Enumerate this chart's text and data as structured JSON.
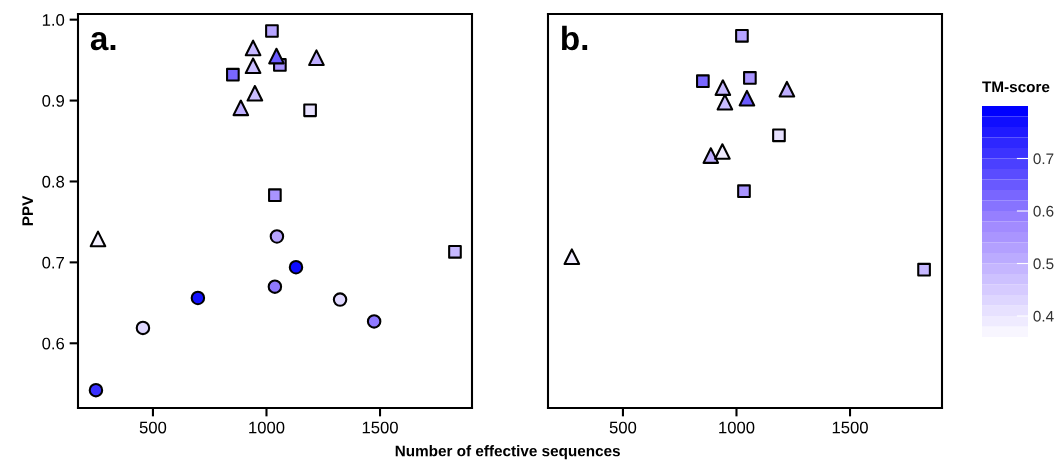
{
  "chart_data": [
    {
      "type": "scatter",
      "title": "a.",
      "xlabel": "Number of effective sequences",
      "ylabel": "PPV",
      "xlim": [
        170,
        1905
      ],
      "xticks": [
        500,
        1000,
        1500
      ],
      "ylim": [
        0.52,
        1.007
      ],
      "yticks": [
        0.6,
        0.7,
        0.8,
        0.9,
        {
          "value": 1.0,
          "label": "1.0"
        }
      ],
      "series": [
        {
          "marker": "circle",
          "x": [
            249,
            456,
            698,
            1037,
            1046,
            1130,
            1324,
            1474
          ],
          "values": [
            0.542,
            0.619,
            0.656,
            0.67,
            0.732,
            0.694,
            0.654,
            0.627
          ],
          "colors": [
            "#3930ff",
            "#dfd7ff",
            "#1512ff",
            "#8f79ff",
            "#b6a4ff",
            "#0e0cff",
            "#dfd7ff",
            "#8f79ff"
          ]
        },
        {
          "marker": "square",
          "x": [
            1024,
            852,
            1059,
            1037,
            1192,
            1830
          ],
          "values": [
            0.986,
            0.932,
            0.944,
            0.783,
            0.888,
            0.713
          ],
          "colors": [
            "#b6a4ff",
            "#7967ff",
            "#a994ff",
            "#a994ff",
            "#e7e1ff",
            "#c6b8ff"
          ]
        },
        {
          "marker": "triangle",
          "x": [
            258,
            941,
            941,
            949,
            887,
            1044,
            1220
          ],
          "values": [
            0.729,
            0.965,
            0.943,
            0.909,
            0.891,
            0.955,
            0.953
          ],
          "colors": [
            "#f4f1ff",
            "#c6b8ff",
            "#cabeff",
            "#cabeff",
            "#beaeff",
            "#6b5bff",
            "#beaeff"
          ]
        }
      ]
    },
    {
      "type": "scatter",
      "title": "b.",
      "xlim": [
        170,
        1905
      ],
      "xticks": [
        500,
        1000,
        1500
      ],
      "ylim": [
        0.52,
        1.007
      ],
      "tick_labels": "x",
      "clim": [
        0.36,
        0.8
      ],
      "cticks": [
        0.4,
        0.5,
        0.6,
        0.7
      ],
      "clabel": "TM-score",
      "colors": [
        "#f8f6ff",
        "#9d85ff",
        "#0000ff"
      ],
      "series": [
        {
          "marker": "square",
          "x": [
            1024,
            852,
            1059,
            1187,
            1033,
            1826
          ],
          "values": [
            0.98,
            0.924,
            0.928,
            0.857,
            0.788,
            0.691
          ],
          "colors": [
            "#b6a4ff",
            "#7967ff",
            "#a994ff",
            "#e7e1ff",
            "#a994ff",
            "#c6b8ff"
          ]
        },
        {
          "marker": "triangle",
          "x": [
            940,
            949,
            1046,
            1222,
            887,
            938,
            275
          ],
          "values": [
            0.916,
            0.898,
            0.903,
            0.914,
            0.832,
            0.837,
            0.707
          ],
          "colors": [
            "#c6b8ff",
            "#cabeff",
            "#6b5bff",
            "#beaeff",
            "#beaeff",
            "#f0ecff",
            "#f0ecff"
          ]
        }
      ]
    }
  ]
}
